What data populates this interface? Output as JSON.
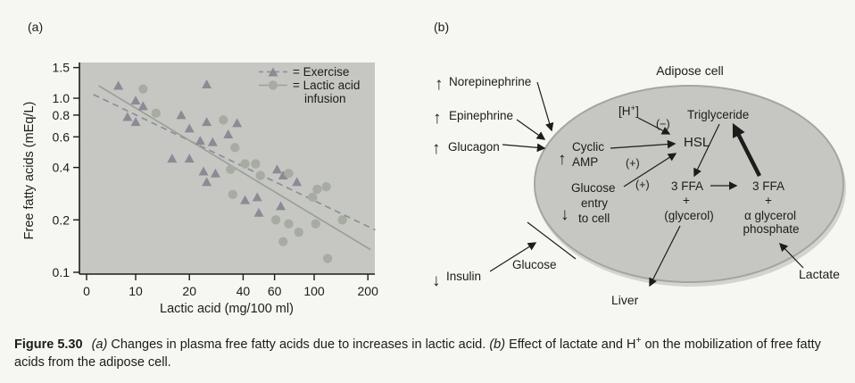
{
  "figure": {
    "panel_a_label": "(a)",
    "panel_b_label": "(b)"
  },
  "colors": {
    "ink": "#1c1c1a",
    "page_bg": "#f6f6f2",
    "plot_bg": "#c6c7c3",
    "cell_fill": "#c6c7c3",
    "cell_rim": "#d3d4d0",
    "cell_stroke": "#a4a5a1"
  },
  "chart_data": {
    "type": "scatter",
    "title": "",
    "xlabel": "Lactic acid (mg/100 ml)",
    "ylabel": "Free fatty acids (mEq/L)",
    "x_scale": "log",
    "y_scale": "log",
    "x_ticks": [
      "0",
      "10",
      "20",
      "40",
      "60",
      "100",
      "200"
    ],
    "y_ticks": [
      "1.5",
      "1.0",
      "0.8",
      "0.6",
      "0.4",
      "0.2",
      "0.1"
    ],
    "xlim": [
      5,
      220
    ],
    "ylim": [
      0.1,
      1.6
    ],
    "grid": false,
    "legend_position": "top-right",
    "legend": {
      "exercise": "= Exercise",
      "infusion_line1": "= Lactic acid",
      "infusion_line2": "infusion"
    },
    "series": [
      {
        "name": "Exercise",
        "marker": "triangle",
        "color": "#8a8b94",
        "line_color": "#8d8e98",
        "line_style": "dashed",
        "points": [
          [
            8,
            1.18
          ],
          [
            10,
            0.97
          ],
          [
            11,
            0.9
          ],
          [
            9,
            0.78
          ],
          [
            10,
            0.73
          ],
          [
            18,
            0.8
          ],
          [
            20,
            0.67
          ],
          [
            25,
            1.2
          ],
          [
            25,
            0.73
          ],
          [
            23,
            0.57
          ],
          [
            27,
            0.56
          ],
          [
            16,
            0.45
          ],
          [
            20,
            0.45
          ],
          [
            37,
            0.72
          ],
          [
            33,
            0.62
          ],
          [
            24,
            0.38
          ],
          [
            28,
            0.37
          ],
          [
            25,
            0.33
          ],
          [
            62,
            0.39
          ],
          [
            67,
            0.36
          ],
          [
            80,
            0.33
          ],
          [
            41,
            0.26
          ],
          [
            48,
            0.27
          ],
          [
            65,
            0.24
          ],
          [
            49,
            0.22
          ]
        ],
        "trend": {
          "x1": 5.8,
          "y1": 1.05,
          "x2": 220,
          "y2": 0.175
        }
      },
      {
        "name": "Lactic acid infusion",
        "marker": "circle",
        "color": "#a7aca2",
        "line_color": "#9aa099",
        "line_style": "solid",
        "points": [
          [
            11,
            1.13
          ],
          [
            13,
            0.82
          ],
          [
            31,
            0.75
          ],
          [
            34,
            0.39
          ],
          [
            36,
            0.52
          ],
          [
            41,
            0.42
          ],
          [
            47,
            0.42
          ],
          [
            50,
            0.36
          ],
          [
            35,
            0.28
          ],
          [
            61,
            0.2
          ],
          [
            72,
            0.37
          ],
          [
            72,
            0.19
          ],
          [
            82,
            0.17
          ],
          [
            67,
            0.15
          ],
          [
            98,
            0.27
          ],
          [
            104,
            0.3
          ],
          [
            117,
            0.31
          ],
          [
            102,
            0.19
          ],
          [
            144,
            0.2
          ],
          [
            119,
            0.12
          ]
        ],
        "trend": {
          "x1": 6.2,
          "y1": 1.18,
          "x2": 207,
          "y2": 0.135
        }
      }
    ]
  },
  "diagram": {
    "title": "Adipose cell",
    "icons": {
      "up_arrow": "↑",
      "down_arrow": "↓"
    },
    "labels": {
      "norepinephrine": "Norepinephrine",
      "epinephrine": "Epinephrine",
      "glucagon": "Glucagon",
      "insulin": "Insulin",
      "h_ion_open": "[H",
      "h_ion_sup": "+",
      "h_ion_close": "]",
      "minus_sign": "(−)",
      "plus_sign_amp": "(+)",
      "plus_sign_glucose": "(+)",
      "hsl": "HSL",
      "triglyceride": "Triglyceride",
      "cyclic_line1": "Cyclic",
      "cyclic_line2": "AMP",
      "glucose_entry_line1": "Glucose",
      "glucose_entry_line2": "entry",
      "glucose_entry_line3": "to cell",
      "ffa_left": "3 FFA",
      "plus_left": "+",
      "glycerol": "(glycerol)",
      "ffa_right": "3 FFA",
      "plus_right": "+",
      "alpha_glycerol": "α glycerol",
      "phosphate": "phosphate",
      "glucose_outside": "Glucose",
      "liver": "Liver",
      "lactate": "Lactate"
    }
  },
  "caption": {
    "figure_label": "Figure 5.30",
    "part_a_label": "(a)",
    "part_a_text": "Changes in plasma free fatty acids due to increases in lactic acid.",
    "part_b_label": "(b)",
    "part_b_text_pre": "Effect of lactate and H",
    "part_b_sup": "+",
    "part_b_text_post": "on the mobilization of free fatty acids from the adipose cell."
  }
}
